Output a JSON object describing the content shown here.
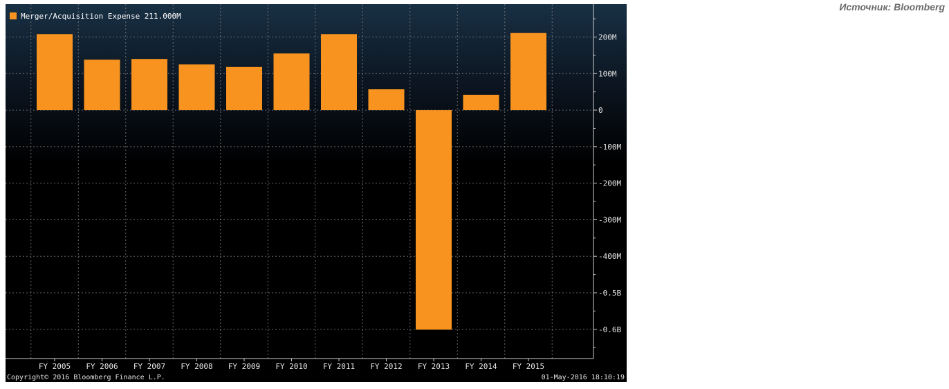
{
  "source": "Источник: Bloomberg",
  "copyright": "Copyright© 2016 Bloomberg Finance L.P.",
  "timestamp": "01-May-2016 18:10:19",
  "legend": {
    "label": "Merger/Acquisition Expense 211.000M",
    "color": "#f7931e"
  },
  "colors": {
    "bar": "#f7931e",
    "background": "#000000"
  },
  "chart_data": {
    "type": "bar",
    "categories": [
      "FY 2005",
      "FY 2006",
      "FY 2007",
      "FY 2008",
      "FY 2009",
      "FY 2010",
      "FY 2011",
      "FY 2012",
      "FY 2013",
      "FY 2014",
      "FY 2015"
    ],
    "series": [
      {
        "name": "Merger/Acquisition Expense",
        "values": [
          208,
          138,
          140,
          125,
          118,
          155,
          208,
          57,
          -601,
          42,
          211
        ]
      }
    ],
    "ylim": [
      -680,
      290
    ],
    "y_ticks": [
      {
        "value": 200,
        "label": "200M"
      },
      {
        "value": 100,
        "label": "100M"
      },
      {
        "value": 0,
        "label": "0"
      },
      {
        "value": -100,
        "label": "-100M"
      },
      {
        "value": -200,
        "label": "-200M"
      },
      {
        "value": -300,
        "label": "-300M"
      },
      {
        "value": -400,
        "label": "-400M"
      },
      {
        "value": -500,
        "label": "-0.5B"
      },
      {
        "value": -600,
        "label": "-0.6B"
      }
    ],
    "y_axis_position": "right",
    "grid": true,
    "legend_position": "top-left",
    "xlabel": "",
    "ylabel": ""
  }
}
